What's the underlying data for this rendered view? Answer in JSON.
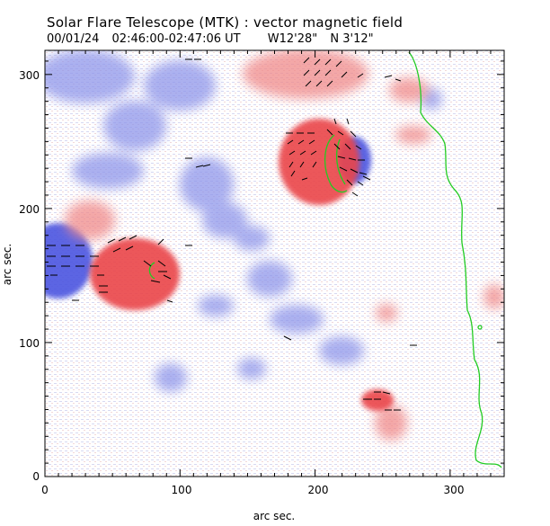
{
  "header": {
    "title": "Solar Flare Telescope (MTK) : vector magnetic field",
    "date": "00/01/24",
    "time_range": "02:46:00-02:47:06 UT",
    "position_w": "W12'28\"",
    "position_n": "N 3'12\""
  },
  "axes": {
    "xlabel": "arc sec.",
    "ylabel": "arc sec.",
    "xlim": [
      0,
      340
    ],
    "ylim": [
      0,
      318
    ],
    "xticks": [
      "0",
      "100",
      "200",
      "300"
    ],
    "yticks": [
      "0",
      "100",
      "200",
      "300"
    ]
  },
  "colors": {
    "positive_polarity": "#e8383c",
    "negative_polarity": "#3c46e6",
    "transverse_field_vectors": "#000000",
    "limb_and_neutral_lines": "#22cc22"
  },
  "image": {
    "type": "magnetogram",
    "description_visible": "Line-of-sight field shown in red (positive) and blue (negative) with black transverse-field vectors and green contours."
  }
}
